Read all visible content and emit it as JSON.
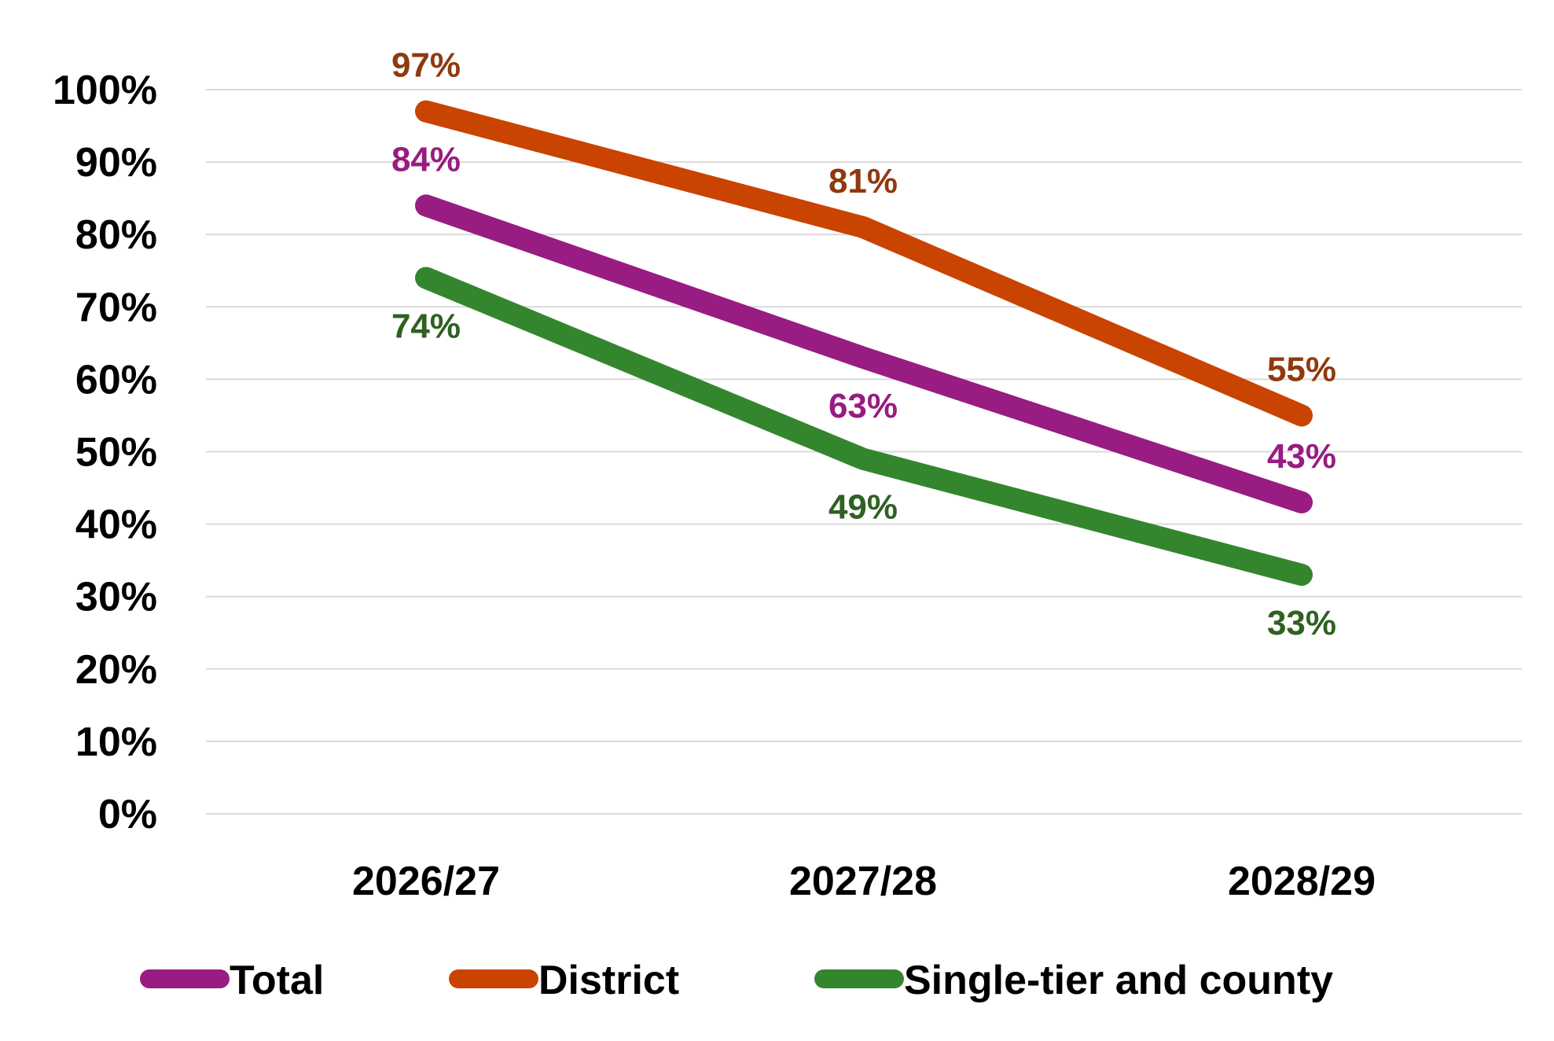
{
  "chart_data": {
    "type": "line",
    "title": "",
    "xlabel": "",
    "ylabel": "",
    "categories": [
      "2026/27",
      "2027/28",
      "2028/29"
    ],
    "ylim": [
      0,
      100
    ],
    "yticks": [
      0,
      10,
      20,
      30,
      40,
      50,
      60,
      70,
      80,
      90,
      100
    ],
    "ytick_labels": [
      "0%",
      "10%",
      "20%",
      "30%",
      "40%",
      "50%",
      "60%",
      "70%",
      "80%",
      "90%",
      "100%"
    ],
    "grid": true,
    "legend_position": "bottom",
    "series": [
      {
        "name": "Total",
        "color": "#981c82",
        "values": [
          84,
          63,
          43
        ],
        "labels": [
          "84%",
          "63%",
          "43%"
        ],
        "label_position": [
          "above",
          "below",
          "above"
        ]
      },
      {
        "name": "District",
        "color": "#c94401",
        "label_color": "#8f3a0e",
        "values": [
          97,
          81,
          55
        ],
        "labels": [
          "97%",
          "81%",
          "55%"
        ],
        "label_position": [
          "above",
          "above",
          "above"
        ]
      },
      {
        "name": "Single-tier and county",
        "color": "#34862e",
        "label_color": "#2e6122",
        "values": [
          74,
          49,
          33
        ],
        "labels": [
          "74%",
          "49%",
          "33%"
        ],
        "label_position": [
          "below",
          "below",
          "below"
        ]
      }
    ]
  }
}
